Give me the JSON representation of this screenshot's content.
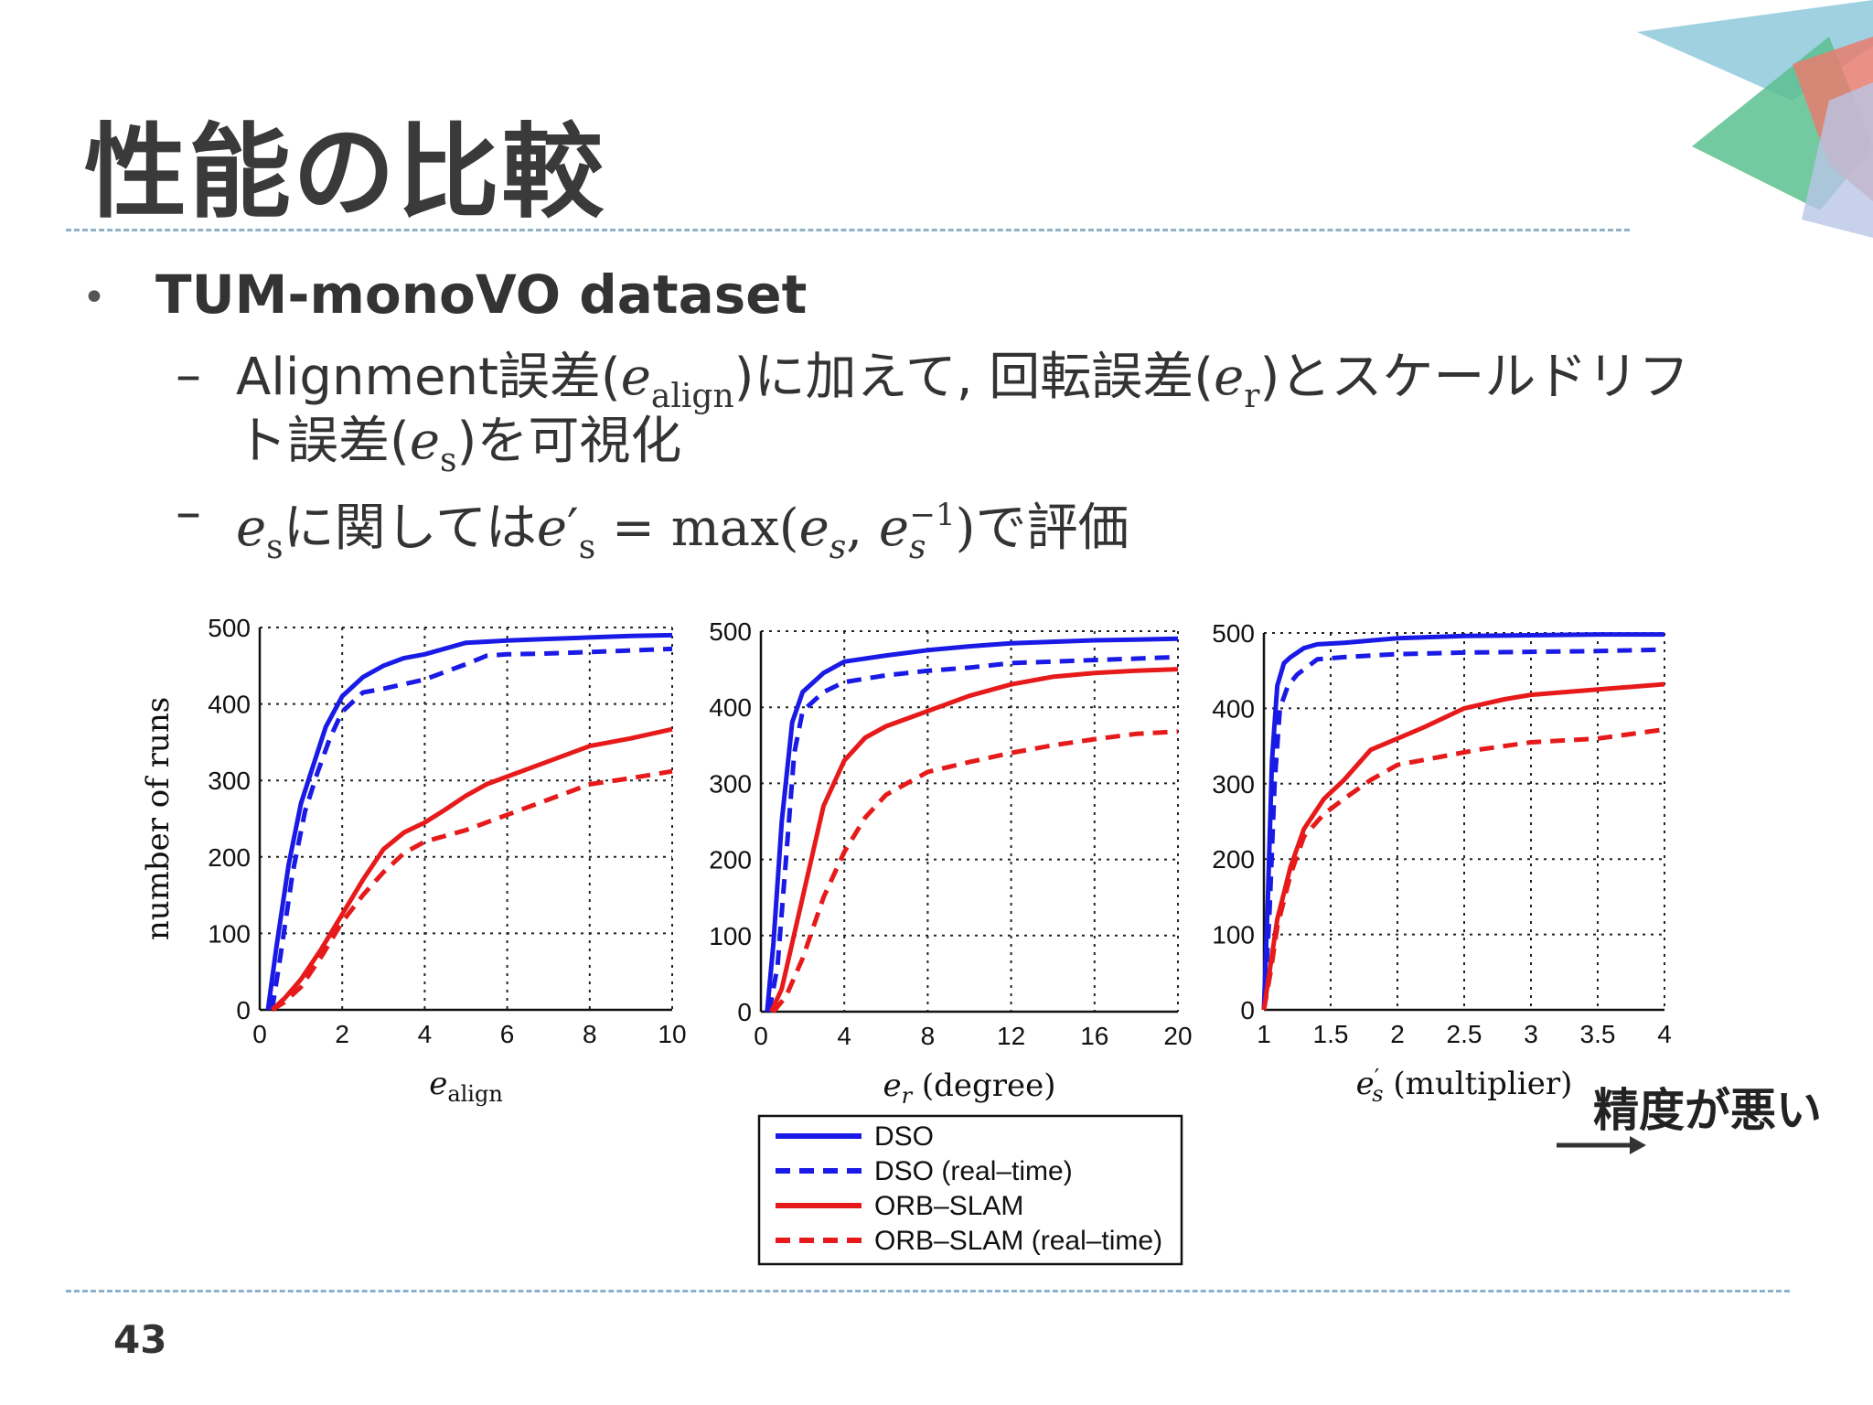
{
  "slide": {
    "title": "性能の比較",
    "bullet": "TUM-monoVO dataset",
    "sub1_a": "Alignment誤差(",
    "sub1_b": ")に加えて, 回転誤差(",
    "sub1_c": ")とスケールドリフ",
    "sub1_line2_a": "ト誤差(",
    "sub1_line2_b": ")を可視化",
    "sub2_a": "に関しては",
    "sub2_b": "で評価",
    "math_e": "e",
    "math_align": "align",
    "math_r": "r",
    "math_s": "s",
    "math_eq": "= max(",
    "math_comma": ",",
    "math_minus1": "−1",
    "math_close": ")",
    "page_number": "43",
    "worse_label": "精度が悪い",
    "accent_colors": [
      "#8ec9dc",
      "#5bbf8f",
      "#e87d6e",
      "#b9c6e6",
      "#74b7d6"
    ]
  },
  "chart_data": [
    {
      "type": "line",
      "xlabel": "e_align",
      "ylabel": "number of runs",
      "xlim": [
        0,
        10
      ],
      "ylim": [
        0,
        500
      ],
      "xticks": [
        "0",
        "2",
        "4",
        "6",
        "8",
        "10"
      ],
      "yticks": [
        "0",
        "100",
        "200",
        "300",
        "400",
        "500"
      ],
      "grid": true,
      "series": [
        {
          "name": "DSO",
          "color": "#1a1ae6",
          "dash": false,
          "x": [
            0.2,
            0.4,
            0.7,
            1.0,
            1.3,
            1.6,
            2.0,
            2.5,
            3.0,
            3.5,
            4.0,
            5.0,
            6.0,
            7.0,
            8.0,
            9.0,
            10.0
          ],
          "y": [
            0,
            80,
            190,
            270,
            320,
            370,
            410,
            435,
            450,
            460,
            465,
            480,
            483,
            485,
            487,
            489,
            490
          ]
        },
        {
          "name": "DSO (real-time)",
          "color": "#1a1ae6",
          "dash": true,
          "x": [
            0.3,
            0.5,
            0.8,
            1.1,
            1.4,
            1.7,
            2.0,
            2.5,
            3.0,
            4.0,
            5.0,
            5.5,
            6.0,
            7.0,
            8.0,
            9.0,
            10.0
          ],
          "y": [
            0,
            70,
            180,
            260,
            310,
            355,
            390,
            415,
            420,
            432,
            452,
            463,
            465,
            466,
            468,
            470,
            472
          ]
        },
        {
          "name": "ORB-SLAM",
          "color": "#e61a1a",
          "dash": false,
          "x": [
            0.3,
            0.6,
            1.0,
            1.5,
            2.0,
            2.5,
            3.0,
            3.5,
            4.0,
            4.5,
            5.0,
            5.5,
            6.0,
            7.0,
            8.0,
            9.0,
            10.0
          ],
          "y": [
            0,
            15,
            40,
            80,
            125,
            170,
            210,
            232,
            245,
            262,
            280,
            295,
            305,
            325,
            345,
            355,
            367
          ]
        },
        {
          "name": "ORB-SLAM (real-time)",
          "color": "#e61a1a",
          "dash": true,
          "x": [
            0.3,
            0.6,
            1.0,
            1.5,
            2.0,
            2.5,
            3.0,
            3.5,
            4.0,
            5.0,
            6.0,
            7.0,
            8.0,
            9.0,
            10.0
          ],
          "y": [
            0,
            10,
            30,
            70,
            115,
            150,
            180,
            205,
            220,
            235,
            255,
            275,
            295,
            303,
            312
          ]
        }
      ]
    },
    {
      "type": "line",
      "xlabel": "e_r (degree)",
      "ylabel": "",
      "xlim": [
        0,
        20
      ],
      "ylim": [
        0,
        500
      ],
      "xticks": [
        "0",
        "4",
        "8",
        "12",
        "16",
        "20"
      ],
      "yticks": [
        "0",
        "100",
        "200",
        "300",
        "400",
        "500"
      ],
      "grid": true,
      "series": [
        {
          "name": "DSO",
          "color": "#1a1ae6",
          "dash": false,
          "x": [
            0.3,
            0.6,
            1.0,
            1.5,
            2.0,
            3.0,
            4.0,
            6.0,
            8.0,
            10.0,
            12.0,
            14.0,
            16.0,
            18.0,
            20.0
          ],
          "y": [
            0,
            90,
            250,
            380,
            420,
            445,
            460,
            468,
            475,
            480,
            484,
            486,
            488,
            489,
            490
          ]
        },
        {
          "name": "DSO (real-time)",
          "color": "#1a1ae6",
          "dash": true,
          "x": [
            0.4,
            0.8,
            1.2,
            1.6,
            2.0,
            3.0,
            4.0,
            6.0,
            8.0,
            10.0,
            12.0,
            14.0,
            16.0,
            18.0,
            20.0
          ],
          "y": [
            0,
            60,
            200,
            340,
            395,
            420,
            433,
            442,
            448,
            452,
            458,
            460,
            462,
            464,
            466
          ]
        },
        {
          "name": "ORB-SLAM",
          "color": "#e61a1a",
          "dash": false,
          "x": [
            0.5,
            1.0,
            1.5,
            2.0,
            3.0,
            4.0,
            5.0,
            6.0,
            8.0,
            10.0,
            12.0,
            14.0,
            16.0,
            18.0,
            20.0
          ],
          "y": [
            0,
            30,
            90,
            150,
            270,
            330,
            360,
            375,
            395,
            415,
            430,
            440,
            445,
            448,
            450
          ]
        },
        {
          "name": "ORB-SLAM (real-time)",
          "color": "#e61a1a",
          "dash": true,
          "x": [
            0.6,
            1.2,
            2.0,
            3.0,
            4.0,
            5.0,
            6.0,
            7.0,
            8.0,
            10.0,
            12.0,
            14.0,
            16.0,
            18.0,
            20.0
          ],
          "y": [
            0,
            20,
            70,
            150,
            210,
            255,
            285,
            300,
            315,
            328,
            340,
            350,
            358,
            365,
            368
          ]
        }
      ]
    },
    {
      "type": "line",
      "xlabel": "e'_s (multiplier)",
      "ylabel": "",
      "xlim": [
        1,
        4
      ],
      "ylim": [
        0,
        500
      ],
      "xticks": [
        "1",
        "1.5",
        "2",
        "2.5",
        "3",
        "3.5",
        "4"
      ],
      "yticks": [
        "0",
        "100",
        "200",
        "300",
        "400",
        "500"
      ],
      "grid": true,
      "series": [
        {
          "name": "DSO",
          "color": "#1a1ae6",
          "dash": false,
          "x": [
            1.0,
            1.03,
            1.06,
            1.1,
            1.15,
            1.2,
            1.3,
            1.4,
            1.6,
            1.8,
            2.0,
            2.5,
            3.0,
            3.5,
            4.0
          ],
          "y": [
            0,
            150,
            330,
            430,
            460,
            468,
            480,
            485,
            487,
            490,
            493,
            496,
            497,
            498,
            498
          ]
        },
        {
          "name": "DSO (real-time)",
          "color": "#1a1ae6",
          "dash": true,
          "x": [
            1.0,
            1.04,
            1.08,
            1.12,
            1.18,
            1.25,
            1.4,
            1.6,
            1.8,
            2.0,
            2.5,
            3.0,
            3.5,
            4.0
          ],
          "y": [
            0,
            120,
            300,
            400,
            430,
            445,
            465,
            468,
            470,
            472,
            474,
            475,
            476,
            478
          ]
        },
        {
          "name": "ORB-SLAM",
          "color": "#e61a1a",
          "dash": false,
          "x": [
            1.0,
            1.05,
            1.1,
            1.2,
            1.3,
            1.45,
            1.6,
            1.8,
            2.0,
            2.2,
            2.5,
            2.8,
            3.0,
            3.5,
            4.0
          ],
          "y": [
            0,
            60,
            120,
            190,
            240,
            280,
            305,
            345,
            360,
            375,
            400,
            412,
            418,
            425,
            432
          ]
        },
        {
          "name": "ORB-SLAM (real-time)",
          "color": "#e61a1a",
          "dash": true,
          "x": [
            1.0,
            1.05,
            1.1,
            1.2,
            1.3,
            1.45,
            1.6,
            1.8,
            2.0,
            2.3,
            2.6,
            3.0,
            3.5,
            4.0
          ],
          "y": [
            0,
            50,
            110,
            180,
            230,
            260,
            280,
            305,
            325,
            335,
            345,
            355,
            360,
            372
          ]
        }
      ]
    }
  ],
  "legend": [
    {
      "label": "DSO",
      "color": "#1a1ae6",
      "dash": false
    },
    {
      "label": "DSO (real–time)",
      "color": "#1a1ae6",
      "dash": true
    },
    {
      "label": "ORB–SLAM",
      "color": "#e61a1a",
      "dash": false
    },
    {
      "label": "ORB–SLAM (real–time)",
      "color": "#e61a1a",
      "dash": true
    }
  ]
}
